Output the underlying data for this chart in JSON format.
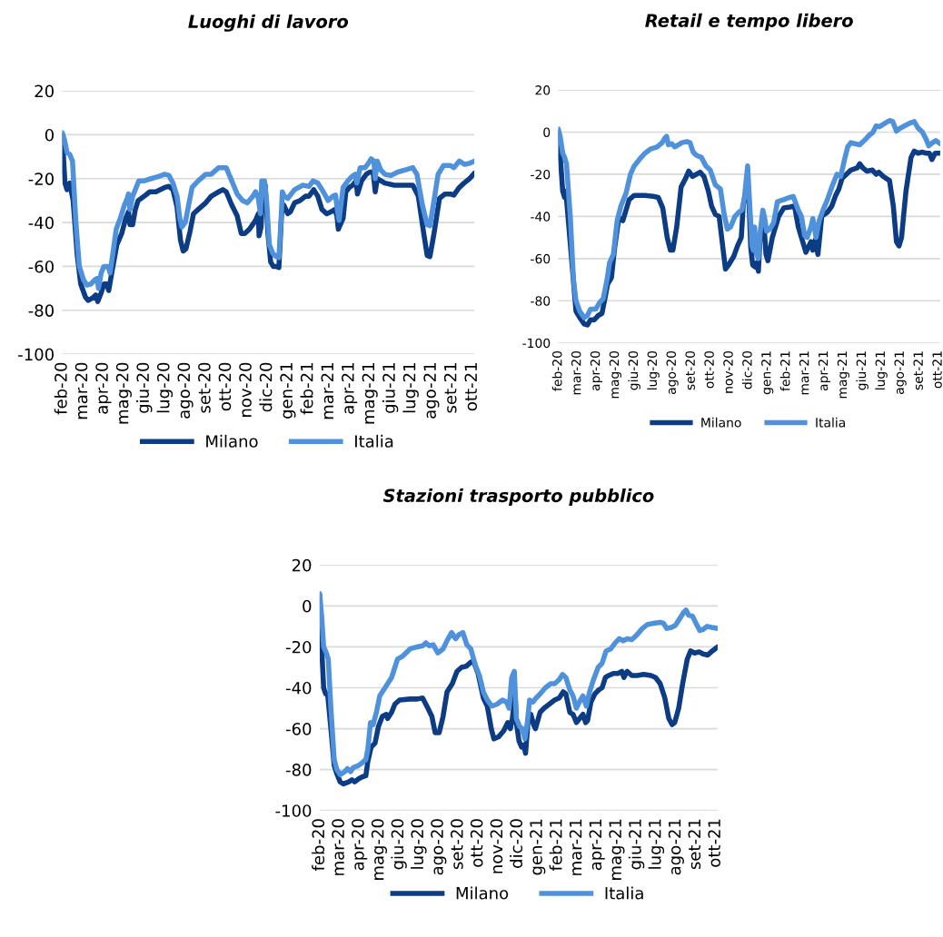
{
  "chart_data": [
    {
      "type": "line",
      "title": "Luoghi di lavoro",
      "xlim": [
        "2020-02-15",
        "2021-10-10"
      ],
      "ylim": [
        -100,
        20
      ],
      "yticks": [
        -100,
        -80,
        -60,
        -40,
        -20,
        0,
        20
      ],
      "xticks": [
        {
          "value": "2020-02-15",
          "label": "feb-20"
        },
        {
          "value": "2020-03-16",
          "label": "mar-20"
        },
        {
          "value": "2020-04-15",
          "label": "apr-20"
        },
        {
          "value": "2020-05-15",
          "label": "mag-20"
        },
        {
          "value": "2020-06-14",
          "label": "giu-20"
        },
        {
          "value": "2020-07-14",
          "label": "lug-20"
        },
        {
          "value": "2020-08-13",
          "label": "ago-20"
        },
        {
          "value": "2020-09-12",
          "label": "set-20"
        },
        {
          "value": "2020-10-12",
          "label": "ott-20"
        },
        {
          "value": "2020-11-11",
          "label": "nov-20"
        },
        {
          "value": "2020-12-11",
          "label": "dic-20"
        },
        {
          "value": "2021-01-10",
          "label": "gen-21"
        },
        {
          "value": "2021-02-09",
          "label": "feb-21"
        },
        {
          "value": "2021-03-11",
          "label": "mar-21"
        },
        {
          "value": "2021-04-10",
          "label": "apr-21"
        },
        {
          "value": "2021-05-10",
          "label": "mag-21"
        },
        {
          "value": "2021-06-09",
          "label": "giu-21"
        },
        {
          "value": "2021-07-09",
          "label": "lug-21"
        },
        {
          "value": "2021-08-08",
          "label": "ago-21"
        },
        {
          "value": "2021-09-07",
          "label": "set-21"
        },
        {
          "value": "2021-10-07",
          "label": "ott-21"
        }
      ],
      "grid": "y",
      "legend": "bottom",
      "series": [
        {
          "name": "Milano",
          "color": "#0b3c84",
          "x": [
            "2020-02-15",
            "2020-02-19",
            "2020-02-22",
            "2020-02-26",
            "2020-03-02",
            "2020-03-08",
            "2020-03-13",
            "2020-03-20",
            "2020-03-24",
            "2020-04-01",
            "2020-04-04",
            "2020-04-07",
            "2020-04-12",
            "2020-04-16",
            "2020-04-20",
            "2020-04-23",
            "2020-04-28",
            "2020-05-05",
            "2020-05-12",
            "2020-05-18",
            "2020-05-22",
            "2020-05-24",
            "2020-05-28",
            "2020-06-01",
            "2020-06-05",
            "2020-06-14",
            "2020-06-22",
            "2020-07-01",
            "2020-07-14",
            "2020-07-20",
            "2020-07-26",
            "2020-08-01",
            "2020-08-06",
            "2020-08-10",
            "2020-08-14",
            "2020-08-20",
            "2020-08-25",
            "2020-09-01",
            "2020-09-12",
            "2020-09-20",
            "2020-10-01",
            "2020-10-07",
            "2020-10-12",
            "2020-10-20",
            "2020-10-28",
            "2020-11-03",
            "2020-11-08",
            "2020-11-15",
            "2020-11-24",
            "2020-11-28",
            "2020-11-29",
            "2020-12-02",
            "2020-12-04",
            "2020-12-06",
            "2020-12-08",
            "2020-12-12",
            "2020-12-16",
            "2020-12-20",
            "2020-12-24",
            "2020-12-28",
            "2021-01-01",
            "2021-01-04",
            "2021-01-10",
            "2021-01-14",
            "2021-01-20",
            "2021-01-28",
            "2021-02-05",
            "2021-02-10",
            "2021-02-17",
            "2021-02-23",
            "2021-03-01",
            "2021-03-08",
            "2021-03-15",
            "2021-03-20",
            "2021-03-23",
            "2021-03-25",
            "2021-04-01",
            "2021-04-05",
            "2021-04-10",
            "2021-04-15",
            "2021-04-20",
            "2021-04-22",
            "2021-04-28",
            "2021-05-05",
            "2021-05-10",
            "2021-05-15",
            "2021-05-18",
            "2021-05-21",
            "2021-06-01",
            "2021-06-15",
            "2021-07-01",
            "2021-07-12",
            "2021-07-20",
            "2021-07-28",
            "2021-08-02",
            "2021-08-06",
            "2021-08-12",
            "2021-08-20",
            "2021-08-28",
            "2021-09-05",
            "2021-09-10",
            "2021-09-18",
            "2021-09-25",
            "2021-10-03",
            "2021-10-10"
          ],
          "values": [
            0,
            -22,
            -25,
            -22,
            -30,
            -55,
            -68,
            -74,
            -75.5,
            -74,
            -73,
            -76,
            -72,
            -68,
            -68,
            -71,
            -62,
            -50,
            -45,
            -38,
            -35,
            -41,
            -41,
            -34,
            -30,
            -28,
            -26,
            -26,
            -24,
            -23.5,
            -25,
            -33,
            -48,
            -53,
            -52,
            -44,
            -36,
            -34,
            -31,
            -28,
            -26,
            -25,
            -26,
            -32,
            -37,
            -45,
            -45,
            -43,
            -39,
            -36,
            -46,
            -42,
            -24,
            -22,
            -23,
            -45,
            -58,
            -60,
            -60,
            -60.5,
            -36,
            -32,
            -36,
            -35,
            -31,
            -30,
            -28,
            -28,
            -25,
            -28,
            -34,
            -36,
            -35,
            -34,
            -37,
            -43,
            -38,
            -26,
            -24,
            -23,
            -21,
            -27,
            -21,
            -18,
            -17,
            -17,
            -26,
            -20,
            -22,
            -23,
            -23,
            -23,
            -28,
            -45,
            -55,
            -55.5,
            -45,
            -29,
            -27,
            -27,
            -27.5,
            -24,
            -22,
            -20,
            -17.5
          ]
        },
        {
          "name": "Italia",
          "color": "#4f92db",
          "x": [
            "2020-02-15",
            "2020-02-18",
            "2020-02-22",
            "2020-02-26",
            "2020-03-01",
            "2020-03-06",
            "2020-03-11",
            "2020-03-17",
            "2020-03-22",
            "2020-03-28",
            "2020-04-03",
            "2020-04-06",
            "2020-04-08",
            "2020-04-12",
            "2020-04-16",
            "2020-04-22",
            "2020-04-25",
            "2020-04-30",
            "2020-05-04",
            "2020-05-10",
            "2020-05-16",
            "2020-05-20",
            "2020-05-22",
            "2020-05-24",
            "2020-05-28",
            "2020-06-01",
            "2020-06-06",
            "2020-06-14",
            "2020-06-24",
            "2020-07-05",
            "2020-07-14",
            "2020-07-20",
            "2020-07-26",
            "2020-08-01",
            "2020-08-05",
            "2020-08-08",
            "2020-08-13",
            "2020-08-18",
            "2020-08-23",
            "2020-09-01",
            "2020-09-12",
            "2020-09-20",
            "2020-10-01",
            "2020-10-12",
            "2020-10-20",
            "2020-10-28",
            "2020-11-05",
            "2020-11-12",
            "2020-11-20",
            "2020-11-24",
            "2020-11-28",
            "2020-12-01",
            "2020-12-03",
            "2020-12-07",
            "2020-12-10",
            "2020-12-14",
            "2020-12-19",
            "2020-12-24",
            "2020-12-28",
            "2020-12-31",
            "2021-01-02",
            "2021-01-05",
            "2021-01-10",
            "2021-01-20",
            "2021-02-01",
            "2021-02-10",
            "2021-02-16",
            "2021-02-23",
            "2021-03-03",
            "2021-03-10",
            "2021-03-17",
            "2021-03-21",
            "2021-03-23",
            "2021-03-26",
            "2021-04-01",
            "2021-04-08",
            "2021-04-14",
            "2021-04-19",
            "2021-04-21",
            "2021-04-26",
            "2021-05-03",
            "2021-05-08",
            "2021-05-12",
            "2021-05-16",
            "2021-05-18",
            "2021-05-21",
            "2021-05-26",
            "2021-06-01",
            "2021-06-10",
            "2021-06-20",
            "2021-07-01",
            "2021-07-12",
            "2021-07-18",
            "2021-07-26",
            "2021-08-02",
            "2021-08-06",
            "2021-08-12",
            "2021-08-18",
            "2021-08-26",
            "2021-09-05",
            "2021-09-10",
            "2021-09-18",
            "2021-09-26",
            "2021-10-03",
            "2021-10-10"
          ],
          "values": [
            1,
            -2,
            -8,
            -9,
            -12,
            -40,
            -60,
            -66,
            -68.5,
            -68,
            -66,
            -65.5,
            -70,
            -63,
            -60,
            -60,
            -63,
            -52,
            -43,
            -38,
            -32,
            -29,
            -27,
            -34,
            -28,
            -25,
            -21,
            -21,
            -20,
            -19,
            -18,
            -18.5,
            -22,
            -28,
            -38,
            -42,
            -40,
            -32,
            -24,
            -21,
            -18,
            -18,
            -15,
            -15,
            -21,
            -27,
            -30,
            -31,
            -28,
            -26,
            -29,
            -36,
            -21,
            -21,
            -30,
            -50,
            -54,
            -55.5,
            -56,
            -40,
            -26,
            -28,
            -29,
            -25,
            -23,
            -23.5,
            -21,
            -22,
            -26,
            -30,
            -28,
            -27.5,
            -33,
            -39,
            -24,
            -21,
            -19,
            -18,
            -22,
            -15,
            -15,
            -13,
            -11,
            -12,
            -20,
            -12,
            -16,
            -18,
            -18.5,
            -17,
            -16,
            -15,
            -18,
            -32,
            -41,
            -41.5,
            -30,
            -18,
            -14,
            -14,
            -15,
            -12,
            -13.5,
            -13,
            -12
          ]
        }
      ]
    },
    {
      "type": "line",
      "title": "Retail e tempo libero",
      "xlim": [
        "2020-02-15",
        "2021-10-10"
      ],
      "ylim": [
        -100,
        20
      ],
      "yticks": [
        -100,
        -80,
        -60,
        -40,
        -20,
        0,
        20
      ],
      "xticks": [
        {
          "value": "2020-02-15",
          "label": "feb-20"
        },
        {
          "value": "2020-03-16",
          "label": "mar-20"
        },
        {
          "value": "2020-04-15",
          "label": "apr-20"
        },
        {
          "value": "2020-05-15",
          "label": "mag-20"
        },
        {
          "value": "2020-06-14",
          "label": "giu-20"
        },
        {
          "value": "2020-07-14",
          "label": "lug-20"
        },
        {
          "value": "2020-08-13",
          "label": "ago-20"
        },
        {
          "value": "2020-09-12",
          "label": "set-20"
        },
        {
          "value": "2020-10-12",
          "label": "ott-20"
        },
        {
          "value": "2020-11-11",
          "label": "nov-20"
        },
        {
          "value": "2020-12-11",
          "label": "dic-20"
        },
        {
          "value": "2021-01-10",
          "label": "gen-21"
        },
        {
          "value": "2021-02-09",
          "label": "feb-21"
        },
        {
          "value": "2021-03-11",
          "label": "mar-21"
        },
        {
          "value": "2021-04-10",
          "label": "apr-21"
        },
        {
          "value": "2021-05-10",
          "label": "mag-21"
        },
        {
          "value": "2021-06-09",
          "label": "giu-21"
        },
        {
          "value": "2021-07-09",
          "label": "lug-21"
        },
        {
          "value": "2021-08-08",
          "label": "ago-21"
        },
        {
          "value": "2021-09-07",
          "label": "set-21"
        },
        {
          "value": "2021-10-07",
          "label": "ott-21"
        }
      ],
      "grid": "y",
      "legend": "bottom",
      "series": [
        {
          "name": "Milano",
          "color": "#0b3c84",
          "x": [
            "2020-02-15",
            "2020-02-19",
            "2020-02-22",
            "2020-02-25",
            "2020-02-27",
            "2020-03-14",
            "2020-03-20",
            "2020-03-27",
            "2020-04-01",
            "2020-04-06",
            "2020-04-12",
            "2020-04-18",
            "2020-04-24",
            "2020-04-28",
            "2020-05-03",
            "2020-05-09",
            "2020-05-14",
            "2020-05-20",
            "2020-05-23",
            "2020-05-27",
            "2020-06-01",
            "2020-06-06",
            "2020-06-14",
            "2020-07-01",
            "2020-07-14",
            "2020-07-22",
            "2020-07-29",
            "2020-08-05",
            "2020-08-10",
            "2020-08-14",
            "2020-08-20",
            "2020-08-27",
            "2020-09-03",
            "2020-09-08",
            "2020-09-14",
            "2020-09-20",
            "2020-09-26",
            "2020-10-02",
            "2020-10-09",
            "2020-10-14",
            "2020-10-20",
            "2020-10-26",
            "2020-11-01",
            "2020-11-05",
            "2020-11-10",
            "2020-11-18",
            "2020-11-24",
            "2020-11-30",
            "2020-12-03",
            "2020-12-07",
            "2020-12-10",
            "2020-12-12",
            "2020-12-15",
            "2020-12-18",
            "2020-12-22",
            "2020-12-24",
            "2020-12-27",
            "2020-12-30",
            "2021-01-01",
            "2021-01-05",
            "2021-01-08",
            "2021-01-11",
            "2021-01-18",
            "2021-01-28",
            "2021-02-05",
            "2021-02-15",
            "2021-02-22",
            "2021-02-28",
            "2021-03-05",
            "2021-03-10",
            "2021-03-12",
            "2021-03-20",
            "2021-03-23",
            "2021-03-27",
            "2021-03-31",
            "2021-04-06",
            "2021-04-15",
            "2021-04-22",
            "2021-04-28",
            "2021-05-03",
            "2021-05-08",
            "2021-05-15",
            "2021-05-22",
            "2021-06-01",
            "2021-06-05",
            "2021-06-10",
            "2021-06-16",
            "2021-06-25",
            "2021-07-01",
            "2021-07-05",
            "2021-07-12",
            "2021-07-22",
            "2021-07-28",
            "2021-08-02",
            "2021-08-06",
            "2021-08-10",
            "2021-08-17",
            "2021-08-25",
            "2021-08-30",
            "2021-09-05",
            "2021-09-12",
            "2021-09-18",
            "2021-09-23",
            "2021-09-27",
            "2021-10-02",
            "2021-10-10"
          ],
          "values": [
            0,
            -15,
            -28,
            -31,
            -28,
            -85,
            -88,
            -91,
            -91.5,
            -89,
            -89,
            -87,
            -86,
            -80,
            -72,
            -69,
            -55,
            -42,
            -41,
            -42,
            -37,
            -32,
            -30,
            -30,
            -30.5,
            -31,
            -36,
            -50,
            -56,
            -56,
            -45,
            -26,
            -22,
            -18.5,
            -21,
            -20,
            -19,
            -21,
            -28,
            -35,
            -39,
            -40,
            -55,
            -65,
            -63,
            -59,
            -54,
            -50,
            -35,
            -28,
            -24,
            -32,
            -55,
            -63,
            -64,
            -62,
            -66,
            -48,
            -50,
            -45,
            -58,
            -61,
            -50,
            -40,
            -36,
            -35.5,
            -35,
            -45,
            -50,
            -55,
            -57,
            -52,
            -56,
            -51,
            -58,
            -40,
            -38,
            -35,
            -30,
            -27,
            -22,
            -20,
            -18,
            -17,
            -15,
            -17,
            -18.5,
            -18,
            -20,
            -19,
            -21,
            -23,
            -35,
            -52,
            -54,
            -50,
            -28,
            -12,
            -9,
            -10,
            -9.5,
            -10,
            -10,
            -13,
            -10,
            -10
          ]
        },
        {
          "name": "Italia",
          "color": "#4f92db",
          "x": [
            "2020-02-15",
            "2020-02-18",
            "2020-02-22",
            "2020-02-25",
            "2020-02-28",
            "2020-03-05",
            "2020-03-10",
            "2020-03-14",
            "2020-03-20",
            "2020-03-27",
            "2020-04-01",
            "2020-04-06",
            "2020-04-14",
            "2020-04-20",
            "2020-04-26",
            "2020-05-02",
            "2020-05-06",
            "2020-05-12",
            "2020-05-18",
            "2020-05-24",
            "2020-06-01",
            "2020-06-08",
            "2020-06-14",
            "2020-06-22",
            "2020-07-01",
            "2020-07-10",
            "2020-07-20",
            "2020-07-28",
            "2020-08-01",
            "2020-08-04",
            "2020-08-07",
            "2020-08-12",
            "2020-08-17",
            "2020-08-23",
            "2020-08-28",
            "2020-09-05",
            "2020-09-10",
            "2020-09-15",
            "2020-09-20",
            "2020-09-28",
            "2020-10-05",
            "2020-10-12",
            "2020-10-20",
            "2020-10-28",
            "2020-11-03",
            "2020-11-08",
            "2020-11-13",
            "2020-11-20",
            "2020-11-26",
            "2020-12-01",
            "2020-12-05",
            "2020-12-10",
            "2020-12-13",
            "2020-12-17",
            "2020-12-19",
            "2020-12-21",
            "2020-12-24",
            "2020-12-27",
            "2020-12-30",
            "2021-01-03",
            "2021-01-06",
            "2021-01-09",
            "2021-01-14",
            "2021-01-20",
            "2021-01-26",
            "2021-02-05",
            "2021-02-14",
            "2021-02-20",
            "2021-02-28",
            "2021-03-05",
            "2021-03-10",
            "2021-03-14",
            "2021-03-20",
            "2021-03-23",
            "2021-03-28",
            "2021-04-02",
            "2021-04-08",
            "2021-04-15",
            "2021-04-22",
            "2021-04-30",
            "2021-05-06",
            "2021-05-12",
            "2021-05-17",
            "2021-05-22",
            "2021-05-28",
            "2021-06-05",
            "2021-06-12",
            "2021-06-20",
            "2021-06-26",
            "2021-07-01",
            "2021-07-06",
            "2021-07-14",
            "2021-07-22",
            "2021-07-27",
            "2021-08-02",
            "2021-08-06",
            "2021-08-15",
            "2021-08-25",
            "2021-08-30",
            "2021-09-05",
            "2021-09-12",
            "2021-09-18",
            "2021-09-22",
            "2021-09-28",
            "2021-10-03",
            "2021-10-10"
          ],
          "values": [
            1.5,
            -2,
            -10,
            -12,
            -15,
            -40,
            -70,
            -80,
            -85,
            -88,
            -87,
            -84,
            -84,
            -81,
            -79,
            -70,
            -62,
            -58,
            -42,
            -35,
            -29,
            -20,
            -16,
            -13,
            -10,
            -8,
            -7,
            -5,
            -3,
            -2,
            -6,
            -5.5,
            -7,
            -6,
            -5,
            -4.5,
            -5,
            -9.5,
            -11,
            -12,
            -16,
            -18,
            -25,
            -27,
            -39,
            -46,
            -45,
            -40,
            -38,
            -37,
            -31,
            -16,
            -33,
            -54,
            -56,
            -45,
            -58,
            -60,
            -47,
            -37,
            -41,
            -47,
            -46,
            -43,
            -33,
            -32,
            -31,
            -30.5,
            -37,
            -40,
            -49,
            -50,
            -45,
            -41,
            -50,
            -42,
            -37,
            -32,
            -26,
            -20,
            -21,
            -13,
            -7,
            -5,
            -5.5,
            -6,
            -4,
            -1.5,
            0,
            3,
            2.5,
            4,
            5.5,
            5,
            0.5,
            1.5,
            3,
            4.5,
            5,
            2,
            0,
            -3.5,
            -6.5,
            -5,
            -4,
            -5.5
          ]
        }
      ]
    },
    {
      "type": "line",
      "title": "Stazioni trasporto pubblico",
      "xlim": [
        "2020-02-15",
        "2021-10-10"
      ],
      "ylim": [
        -100,
        20
      ],
      "yticks": [
        -100,
        -80,
        -60,
        -40,
        -20,
        0,
        20
      ],
      "xticks": [
        {
          "value": "2020-02-15",
          "label": "feb-20"
        },
        {
          "value": "2020-03-16",
          "label": "mar-20"
        },
        {
          "value": "2020-04-15",
          "label": "apr-20"
        },
        {
          "value": "2020-05-15",
          "label": "mag-20"
        },
        {
          "value": "2020-06-14",
          "label": "giu-20"
        },
        {
          "value": "2020-07-14",
          "label": "lug-20"
        },
        {
          "value": "2020-08-13",
          "label": "ago-20"
        },
        {
          "value": "2020-09-12",
          "label": "set-20"
        },
        {
          "value": "2020-10-12",
          "label": "ott-20"
        },
        {
          "value": "2020-11-11",
          "label": "nov-20"
        },
        {
          "value": "2020-12-11",
          "label": "dic-20"
        },
        {
          "value": "2021-01-10",
          "label": "gen-21"
        },
        {
          "value": "2021-02-09",
          "label": "feb-21"
        },
        {
          "value": "2021-03-11",
          "label": "mar-21"
        },
        {
          "value": "2021-04-10",
          "label": "apr-21"
        },
        {
          "value": "2021-05-10",
          "label": "mag-21"
        },
        {
          "value": "2021-06-09",
          "label": "giu-21"
        },
        {
          "value": "2021-07-09",
          "label": "lug-21"
        },
        {
          "value": "2021-08-08",
          "label": "ago-21"
        },
        {
          "value": "2021-09-07",
          "label": "set-21"
        },
        {
          "value": "2021-10-07",
          "label": "ott-21"
        }
      ],
      "grid": "y",
      "legend": "bottom",
      "series": [
        {
          "name": "Milano",
          "color": "#0b3c84",
          "x": [
            "2020-02-15",
            "2020-02-18",
            "2020-02-21",
            "2020-02-24",
            "2020-02-27",
            "2020-03-03",
            "2020-03-08",
            "2020-03-12",
            "2020-03-17",
            "2020-03-22",
            "2020-03-30",
            "2020-04-04",
            "2020-04-08",
            "2020-04-14",
            "2020-04-20",
            "2020-04-25",
            "2020-04-28",
            "2020-05-03",
            "2020-05-09",
            "2020-05-14",
            "2020-05-20",
            "2020-05-26",
            "2020-05-28",
            "2020-06-03",
            "2020-06-08",
            "2020-06-15",
            "2020-07-01",
            "2020-07-12",
            "2020-07-20",
            "2020-07-28",
            "2020-08-03",
            "2020-08-08",
            "2020-08-14",
            "2020-08-20",
            "2020-08-26",
            "2020-09-03",
            "2020-09-10",
            "2020-09-17",
            "2020-09-24",
            "2020-10-01",
            "2020-10-05",
            "2020-10-12",
            "2020-10-20",
            "2020-10-26",
            "2020-11-01",
            "2020-11-05",
            "2020-11-12",
            "2020-11-20",
            "2020-11-26",
            "2020-11-30",
            "2020-12-03",
            "2020-12-07",
            "2020-12-09",
            "2020-12-13",
            "2020-12-17",
            "2020-12-20",
            "2020-12-23",
            "2020-12-27",
            "2020-12-31",
            "2021-01-04",
            "2021-01-07",
            "2021-01-14",
            "2021-01-20",
            "2021-01-28",
            "2021-02-05",
            "2021-02-12",
            "2021-02-18",
            "2021-02-22",
            "2021-02-28",
            "2021-03-05",
            "2021-03-10",
            "2021-03-15",
            "2021-03-20",
            "2021-03-24",
            "2021-03-27",
            "2021-04-01",
            "2021-04-07",
            "2021-04-13",
            "2021-04-18",
            "2021-04-23",
            "2021-04-28",
            "2021-05-05",
            "2021-05-12",
            "2021-05-18",
            "2021-05-21",
            "2021-05-26",
            "2021-06-02",
            "2021-06-10",
            "2021-06-20",
            "2021-07-01",
            "2021-07-08",
            "2021-07-15",
            "2021-07-22",
            "2021-07-28",
            "2021-08-02",
            "2021-08-06",
            "2021-08-12",
            "2021-08-18",
            "2021-08-25",
            "2021-08-30",
            "2021-09-05",
            "2021-09-12",
            "2021-09-18",
            "2021-09-25",
            "2021-10-02",
            "2021-10-10"
          ],
          "values": [
            5,
            -20,
            -40,
            -43,
            -43,
            -60,
            -78,
            -82,
            -86,
            -87,
            -86,
            -85,
            -86,
            -84.5,
            -83.5,
            -83,
            -76,
            -69,
            -67,
            -59,
            -54,
            -53,
            -55,
            -52,
            -48,
            -46,
            -45.5,
            -45.5,
            -45,
            -50,
            -54,
            -62,
            -62,
            -54,
            -42,
            -38,
            -32,
            -30,
            -29.5,
            -27.5,
            -27,
            -33,
            -45,
            -49,
            -60,
            -65,
            -64,
            -61,
            -57,
            -60,
            -55,
            -43,
            -57,
            -66,
            -69,
            -68,
            -72,
            -55,
            -53,
            -58,
            -60,
            -52,
            -50,
            -48,
            -46,
            -45,
            -42,
            -43,
            -52,
            -53,
            -57,
            -55,
            -53,
            -57,
            -56,
            -47,
            -43,
            -41,
            -40,
            -35,
            -34,
            -33,
            -33,
            -32,
            -35,
            -32,
            -34,
            -34,
            -33.5,
            -34,
            -35,
            -38,
            -45,
            -55,
            -58,
            -57,
            -50,
            -38,
            -26,
            -22,
            -23,
            -22.5,
            -23.5,
            -24,
            -22,
            -20
          ]
        },
        {
          "name": "Italia",
          "color": "#4f92db",
          "x": [
            "2020-02-15",
            "2020-02-18",
            "2020-02-21",
            "2020-02-25",
            "2020-02-28",
            "2020-03-03",
            "2020-03-08",
            "2020-03-12",
            "2020-03-17",
            "2020-03-24",
            "2020-03-28",
            "2020-04-02",
            "2020-04-06",
            "2020-04-14",
            "2020-04-20",
            "2020-04-25",
            "2020-04-28",
            "2020-05-02",
            "2020-05-06",
            "2020-05-11",
            "2020-05-16",
            "2020-05-22",
            "2020-05-28",
            "2020-06-03",
            "2020-06-08",
            "2020-06-12",
            "2020-06-20",
            "2020-07-01",
            "2020-07-12",
            "2020-07-20",
            "2020-07-25",
            "2020-07-30",
            "2020-08-05",
            "2020-08-12",
            "2020-08-20",
            "2020-08-26",
            "2020-09-02",
            "2020-09-08",
            "2020-09-13",
            "2020-09-19",
            "2020-09-25",
            "2020-10-01",
            "2020-10-08",
            "2020-10-14",
            "2020-10-20",
            "2020-10-26",
            "2020-11-02",
            "2020-11-10",
            "2020-11-18",
            "2020-11-24",
            "2020-11-28",
            "2020-12-02",
            "2020-12-06",
            "2020-12-09",
            "2020-12-14",
            "2020-12-18",
            "2020-12-22",
            "2020-12-26",
            "2020-12-29",
            "2021-01-03",
            "2021-01-08",
            "2021-01-14",
            "2021-01-22",
            "2021-01-30",
            "2021-02-05",
            "2021-02-12",
            "2021-02-17",
            "2021-02-22",
            "2021-02-28",
            "2021-03-05",
            "2021-03-10",
            "2021-03-16",
            "2021-03-20",
            "2021-03-25",
            "2021-03-30",
            "2021-04-05",
            "2021-04-12",
            "2021-04-18",
            "2021-04-24",
            "2021-05-01",
            "2021-05-08",
            "2021-05-14",
            "2021-05-20",
            "2021-05-26",
            "2021-06-02",
            "2021-06-10",
            "2021-06-18",
            "2021-06-26",
            "2021-07-05",
            "2021-07-15",
            "2021-07-20",
            "2021-07-25",
            "2021-08-01",
            "2021-08-07",
            "2021-08-14",
            "2021-08-20",
            "2021-08-23",
            "2021-08-27",
            "2021-09-02",
            "2021-09-08",
            "2021-09-13",
            "2021-09-18",
            "2021-09-24",
            "2021-10-01",
            "2021-10-10"
          ],
          "values": [
            6,
            -5,
            -20,
            -23,
            -26,
            -50,
            -75,
            -80,
            -82.5,
            -81,
            -79.5,
            -81,
            -79,
            -78,
            -76.5,
            -75,
            -70,
            -57,
            -58,
            -52,
            -44,
            -41,
            -38,
            -35,
            -30,
            -26,
            -24.5,
            -21,
            -20,
            -19.5,
            -18,
            -19.5,
            -19,
            -23,
            -21,
            -17,
            -13,
            -16,
            -14,
            -13,
            -19,
            -21,
            -29,
            -34,
            -42,
            -46,
            -49,
            -48,
            -46,
            -47,
            -50,
            -35,
            -32,
            -55,
            -59,
            -60,
            -65,
            -56,
            -46,
            -47,
            -45,
            -43,
            -40,
            -38,
            -38,
            -36,
            -33.5,
            -35,
            -41,
            -44,
            -50,
            -46,
            -44,
            -49,
            -42,
            -36,
            -30,
            -28,
            -22,
            -21,
            -18,
            -16,
            -17,
            -16,
            -16.5,
            -14,
            -11,
            -9,
            -8.5,
            -8,
            -8.5,
            -11,
            -10.5,
            -9.5,
            -6,
            -3,
            -2,
            -4.5,
            -5,
            -9,
            -12,
            -11.5,
            -10,
            -10.5,
            -11
          ]
        }
      ]
    }
  ]
}
